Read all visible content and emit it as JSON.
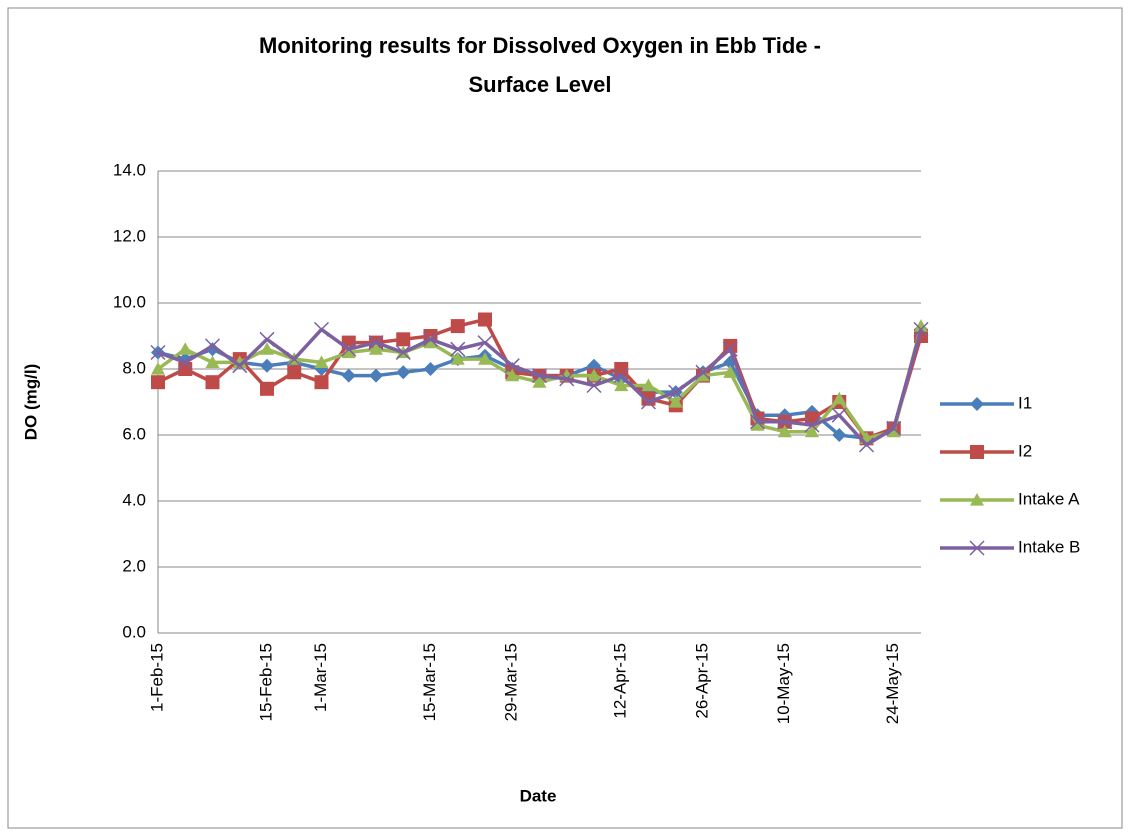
{
  "chart_data": {
    "type": "line",
    "title_lines": [
      "Monitoring results for Dissolved Oxygen in Ebb Tide -",
      "Surface Level"
    ],
    "x_label": "Date",
    "y_label": "DO (mg/l)",
    "categories": [
      "1-Feb-15",
      null,
      null,
      null,
      "15-Feb-15",
      null,
      "1-Mar-15",
      null,
      null,
      null,
      "15-Mar-15",
      null,
      null,
      "29-Mar-15",
      null,
      null,
      null,
      "12-Apr-15",
      null,
      null,
      "26-Apr-15",
      null,
      null,
      "10-May-15",
      null,
      null,
      null,
      "24-May-15",
      null
    ],
    "series": [
      {
        "name": "I1",
        "color": "#4a7ebb",
        "marker": "diamond",
        "values": [
          8.5,
          8.3,
          8.6,
          8.2,
          8.1,
          8.2,
          8.0,
          7.8,
          7.8,
          7.9,
          8.0,
          8.3,
          8.4,
          8.0,
          7.8,
          7.8,
          8.1,
          7.7,
          7.3,
          7.3,
          7.9,
          8.2,
          6.6,
          6.6,
          6.7,
          6.0,
          5.9,
          6.2,
          9.2
        ]
      },
      {
        "name": "I2",
        "color": "#be4b48",
        "marker": "square",
        "values": [
          7.6,
          8.0,
          7.6,
          8.3,
          7.4,
          7.9,
          7.6,
          8.8,
          8.8,
          8.9,
          9.0,
          9.3,
          9.5,
          7.9,
          7.8,
          7.8,
          7.8,
          8.0,
          7.1,
          6.9,
          7.8,
          8.7,
          6.5,
          6.4,
          6.5,
          7.0,
          5.9,
          6.2,
          9.0
        ]
      },
      {
        "name": "Intake A",
        "color": "#98b954",
        "marker": "triangle",
        "values": [
          8.0,
          8.6,
          8.2,
          8.2,
          8.6,
          8.3,
          8.2,
          8.5,
          8.6,
          8.5,
          8.8,
          8.3,
          8.3,
          7.8,
          7.6,
          7.8,
          7.8,
          7.5,
          7.5,
          7.0,
          7.8,
          7.9,
          6.3,
          6.1,
          6.1,
          7.1,
          5.9,
          6.1,
          9.3
        ]
      },
      {
        "name": "Intake B",
        "color": "#7d60a0",
        "marker": "x",
        "values": [
          8.5,
          8.2,
          8.7,
          8.1,
          8.9,
          8.3,
          9.2,
          8.6,
          8.8,
          8.5,
          8.9,
          8.6,
          8.8,
          8.1,
          7.8,
          7.7,
          7.5,
          7.8,
          7.0,
          7.3,
          7.9,
          8.6,
          6.4,
          6.4,
          6.3,
          6.6,
          5.7,
          6.2,
          9.2
        ]
      }
    ],
    "ylim": [
      0,
      14
    ],
    "yticks": [
      {
        "value": 0,
        "label": "0.0"
      },
      {
        "value": 2,
        "label": "2.0"
      },
      {
        "value": 4,
        "label": "4.0"
      },
      {
        "value": 6,
        "label": "6.0"
      },
      {
        "value": 8,
        "label": "8.0"
      },
      {
        "value": 10,
        "label": "10.0"
      },
      {
        "value": 12,
        "label": "12.0"
      },
      {
        "value": 14,
        "label": "14.0"
      }
    ],
    "grid": true,
    "legend": "right"
  }
}
